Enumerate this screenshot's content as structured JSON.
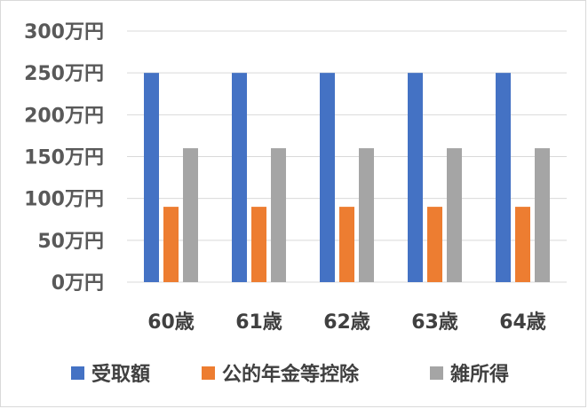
{
  "chart_data": {
    "type": "bar",
    "categories": [
      "60歳",
      "61歳",
      "62歳",
      "63歳",
      "64歳"
    ],
    "series": [
      {
        "name": "受取額",
        "values": [
          250,
          250,
          250,
          250,
          250
        ],
        "color": "#4472C4"
      },
      {
        "name": "公的年金等控除",
        "values": [
          90,
          90,
          90,
          90,
          90
        ],
        "color": "#ED7D31"
      },
      {
        "name": "雑所得",
        "values": [
          160,
          160,
          160,
          160,
          160
        ],
        "color": "#A5A5A5"
      }
    ],
    "ylim": [
      0,
      300
    ],
    "yticks": [
      0,
      50,
      100,
      150,
      200,
      250,
      300
    ],
    "ytick_labels": [
      "0万円",
      "50万円",
      "100万円",
      "150万円",
      "200万円",
      "250万円",
      "300万円"
    ],
    "grid": true,
    "legend_position": "bottom"
  }
}
